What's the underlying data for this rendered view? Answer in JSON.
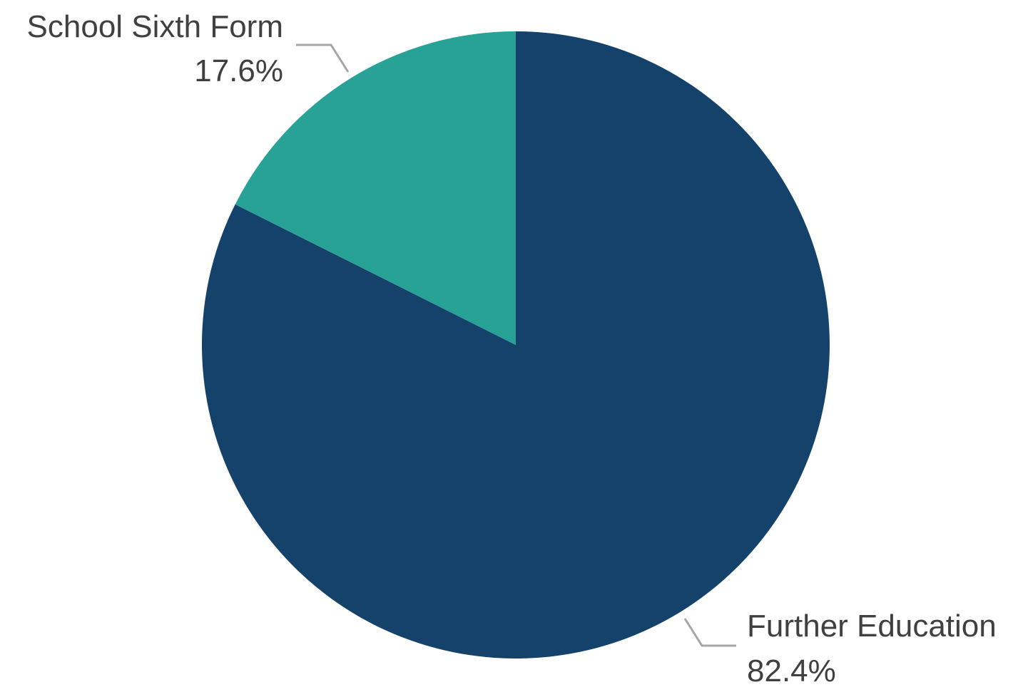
{
  "chart_data": {
    "type": "pie",
    "title": "",
    "slices": [
      {
        "name": "Further Education",
        "value": 82.4,
        "label": "82.4%",
        "color": "#14426b"
      },
      {
        "name": "School Sixth Form",
        "value": 17.6,
        "label": "17.6%",
        "color": "#28a197"
      }
    ],
    "start_angle": "12 o'clock",
    "direction": "clockwise",
    "legend": "none",
    "data_labels": "outside with leader lines"
  }
}
